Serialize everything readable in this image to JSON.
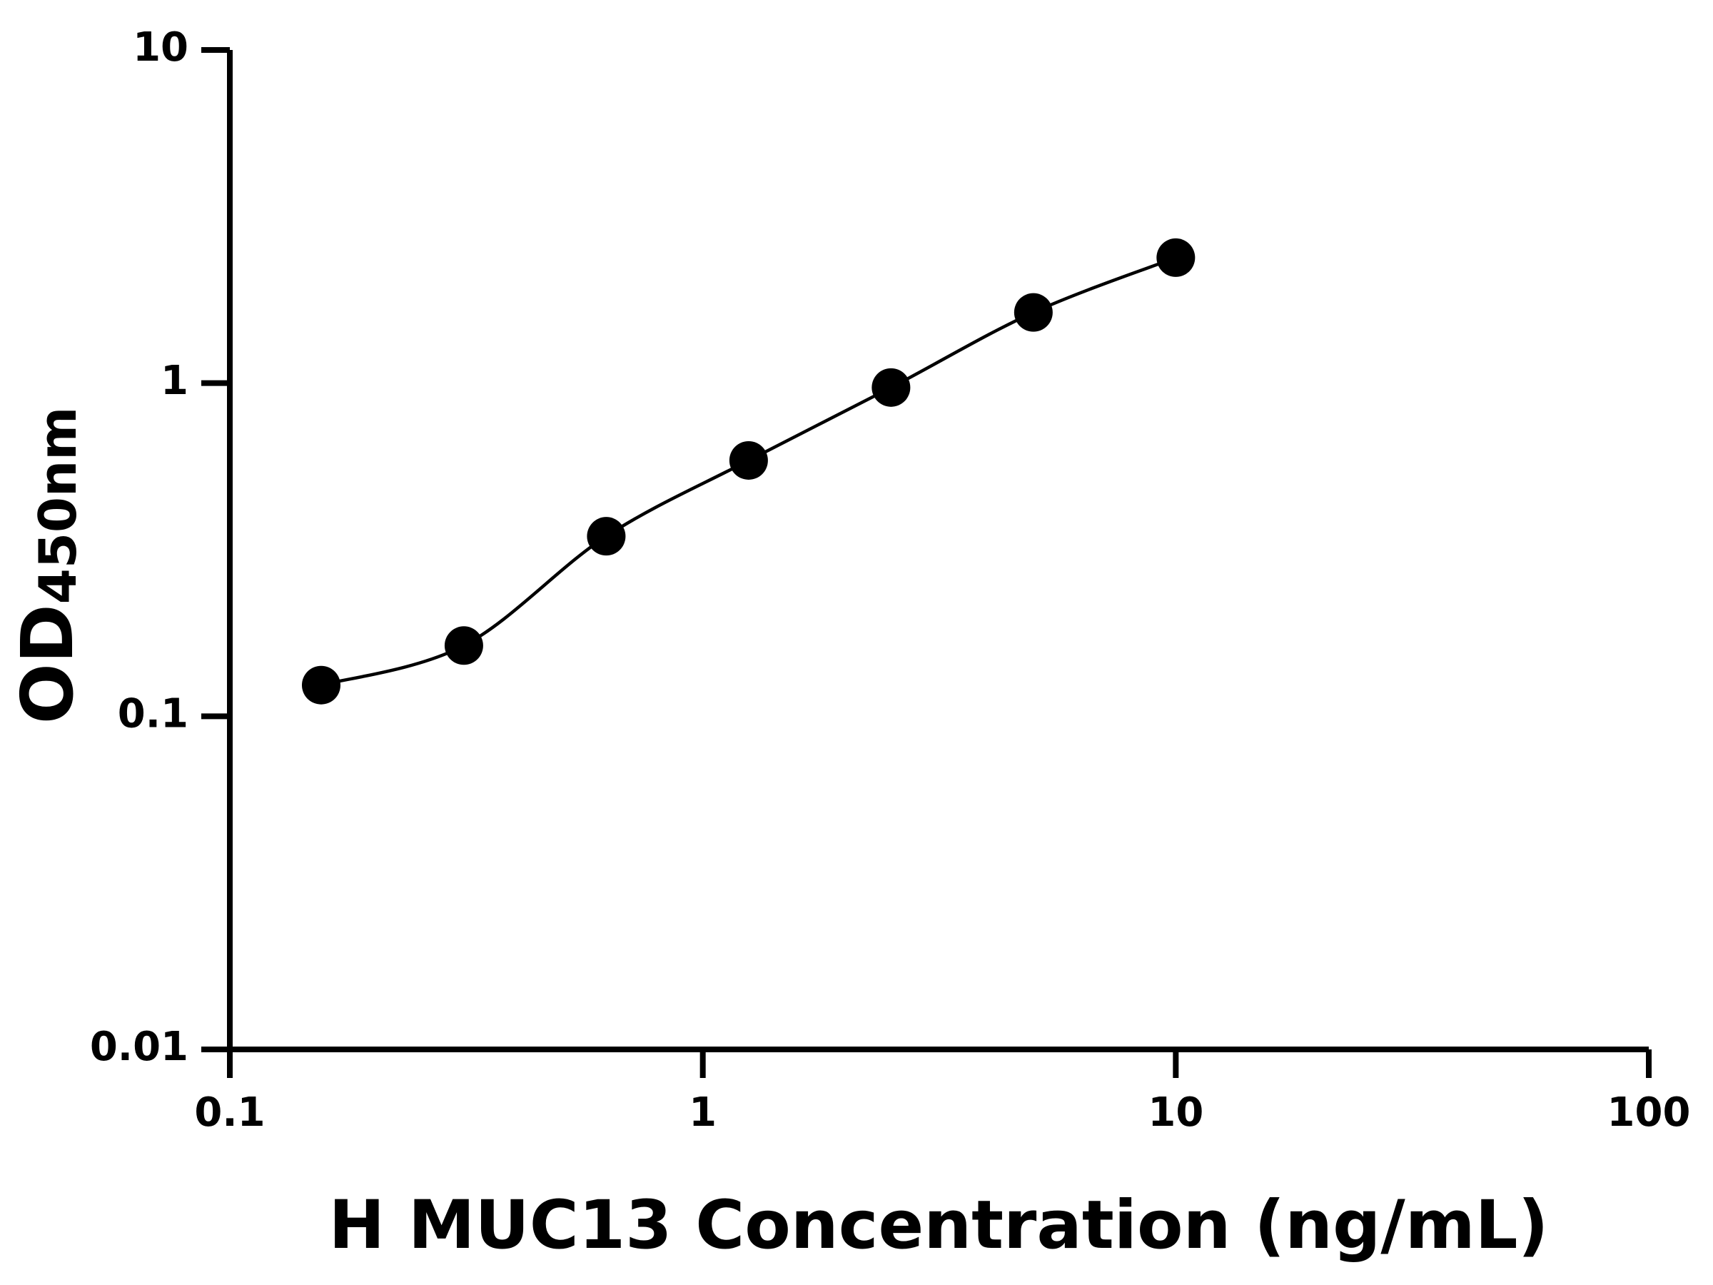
{
  "chart_data": {
    "type": "scatter",
    "x_label": "H MUC13 Concentration (ng/mL)",
    "y_label": "OD",
    "y_label_sub": "450nm",
    "x_log": true,
    "y_log": true,
    "xlim": [
      0.1,
      100
    ],
    "ylim": [
      0.01,
      10
    ],
    "xticks": [
      0.1,
      1,
      10,
      100
    ],
    "yticks": [
      0.01,
      0.1,
      1,
      10
    ],
    "series": [
      {
        "color": "#000000",
        "x": [
          0.156,
          0.3125,
          0.625,
          1.25,
          2.5,
          5,
          10
        ],
        "values": [
          0.124,
          0.163,
          0.347,
          0.586,
          0.97,
          1.63,
          2.38
        ]
      }
    ]
  }
}
